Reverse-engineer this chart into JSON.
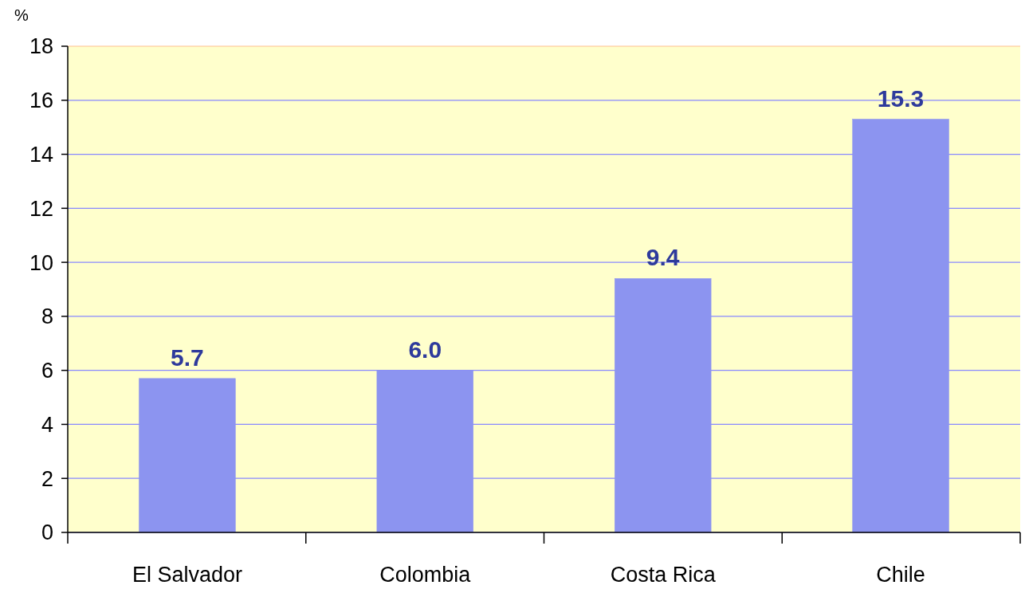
{
  "chart_data": {
    "type": "bar",
    "ylabel": "%",
    "categories": [
      "El Salvador",
      "Colombia",
      "Costa Rica",
      "Chile"
    ],
    "values": [
      5.7,
      6.0,
      9.4,
      15.3
    ],
    "value_labels": [
      "5.7",
      "6.0",
      "9.4",
      "15.3"
    ],
    "color": "#8c94f0",
    "ylim": [
      0,
      18
    ],
    "yticks": [
      0,
      2,
      4,
      6,
      8,
      10,
      12,
      14,
      16,
      18
    ],
    "grid": "y"
  }
}
